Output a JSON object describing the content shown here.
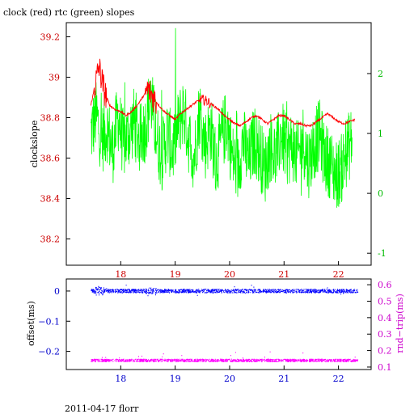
{
  "title": "clock (red) rtc (green) slopes",
  "footer": "2011-04-17 florr",
  "colors": {
    "clock": "#ff0000",
    "rtc": "#00ff00",
    "offset": "#0000ff",
    "rndtrip": "#ff00ff",
    "axis_upper": "#cc0000",
    "axis_right_upper": "#00bb00",
    "axis_lower": "#0000cc",
    "axis_right_lower": "#cc00cc"
  },
  "chart_data": [
    {
      "type": "line",
      "title": "clock (red) rtc (green) slopes",
      "ylabel": "clockslope",
      "xlim": [
        17.0,
        22.6
      ],
      "ylim": [
        38.07,
        39.27
      ],
      "ylim_right": [
        -1.2,
        2.85
      ],
      "x_ticks": [
        18,
        19,
        20,
        21,
        22
      ],
      "y_ticks": [
        38.2,
        38.4,
        38.6,
        38.8,
        39,
        39.2
      ],
      "y_ticks_right": [
        -1,
        0,
        1,
        2
      ],
      "grid": false,
      "series": [
        {
          "name": "clock",
          "axis": "left",
          "x": [
            17.45,
            17.6,
            17.7,
            17.8,
            17.9,
            18.0,
            18.1,
            18.2,
            18.3,
            18.4,
            18.5,
            18.6,
            18.7,
            18.8,
            18.9,
            19.0,
            19.1,
            19.2,
            19.3,
            19.4,
            19.5,
            19.6,
            19.7,
            19.8,
            19.9,
            20.0,
            20.1,
            20.2,
            20.3,
            20.4,
            20.5,
            20.6,
            20.7,
            20.8,
            20.9,
            21.0,
            21.1,
            21.2,
            21.3,
            21.4,
            21.5,
            21.6,
            21.7,
            21.8,
            21.9,
            22.0,
            22.1,
            22.2,
            22.3
          ],
          "y": [
            38.86,
            39.05,
            38.93,
            38.86,
            38.84,
            38.83,
            38.81,
            38.83,
            38.86,
            38.9,
            38.94,
            38.9,
            38.86,
            38.83,
            38.81,
            38.79,
            38.82,
            38.84,
            38.86,
            38.88,
            38.89,
            38.88,
            38.86,
            38.84,
            38.81,
            38.79,
            38.77,
            38.76,
            38.78,
            38.8,
            38.81,
            38.79,
            38.77,
            38.79,
            38.81,
            38.81,
            38.79,
            38.77,
            38.77,
            38.76,
            38.76,
            38.78,
            38.8,
            38.82,
            38.8,
            38.78,
            38.77,
            38.78,
            38.79
          ]
        },
        {
          "name": "rtc",
          "axis": "right",
          "x": [
            17.45,
            17.55,
            17.65,
            17.75,
            17.85,
            17.95,
            18.05,
            18.15,
            18.25,
            18.35,
            18.45,
            18.55,
            18.65,
            18.75,
            18.85,
            18.95,
            19.05,
            19.15,
            19.25,
            19.35,
            19.45,
            19.55,
            19.65,
            19.75,
            19.85,
            19.95,
            20.05,
            20.15,
            20.25,
            20.35,
            20.45,
            20.55,
            20.65,
            20.75,
            20.85,
            20.95,
            21.05,
            21.15,
            21.25,
            21.35,
            21.45,
            21.55,
            21.65,
            21.75,
            21.85,
            21.95,
            22.05,
            22.15,
            22.25
          ],
          "y": [
            1.0,
            1.3,
            0.9,
            1.1,
            0.7,
            1.3,
            0.8,
            1.0,
            1.2,
            0.9,
            1.1,
            1.6,
            1.0,
            0.6,
            1.0,
            0.7,
            1.1,
            1.4,
            0.9,
            0.6,
            1.4,
            0.8,
            1.1,
            0.5,
            0.9,
            1.2,
            0.6,
            0.4,
            0.9,
            0.5,
            0.9,
            0.7,
            0.4,
            0.8,
            0.6,
            1.0,
            0.7,
            0.8,
            0.6,
            0.9,
            0.5,
            0.8,
            1.0,
            0.6,
            0.5,
            0.3,
            0.4,
            0.7,
            0.9
          ]
        }
      ]
    },
    {
      "type": "scatter",
      "ylabel": "offset(ms)",
      "ylabel_right": "rnd−trip(ms)",
      "xlim": [
        17.0,
        22.6
      ],
      "ylim": [
        -0.26,
        0.04
      ],
      "ylim_right": [
        0.085,
        0.635
      ],
      "x_ticks": [
        18,
        19,
        20,
        21,
        22
      ],
      "y_ticks": [
        0,
        -0.1,
        -0.2
      ],
      "y_ticks_right": [
        0.1,
        0.2,
        0.3,
        0.4,
        0.5,
        0.6
      ],
      "grid": false,
      "series": [
        {
          "axis": "left",
          "x_range": [
            17.45,
            22.35
          ],
          "y_center": 0.0,
          "y_spread": 0.006
        },
        {
          "axis": "right",
          "x_range": [
            17.45,
            22.35
          ],
          "y_center": 0.14,
          "y_spread": 0.008
        }
      ]
    }
  ]
}
